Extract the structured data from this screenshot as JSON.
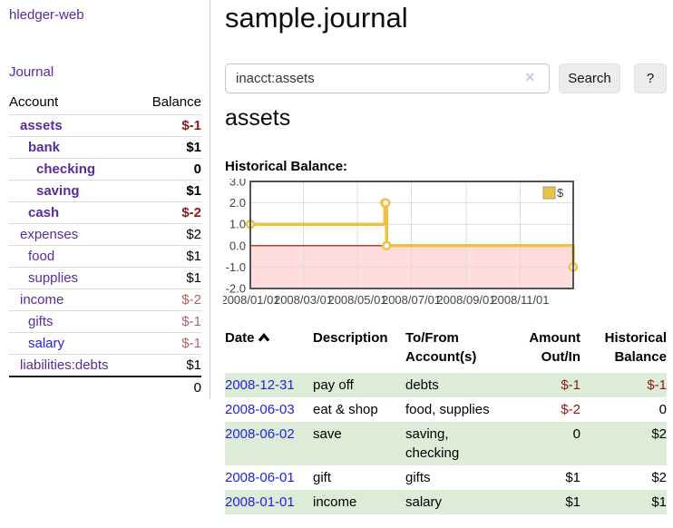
{
  "colors": {
    "link_purple": "#5a2b9a",
    "link_blue": "#2222dd",
    "negative_strong": "#8b1a1a",
    "negative_soft": "#b25f66",
    "row_alt_green": "#dcecd7",
    "button_bg": "#ececec",
    "series_gold": "#edc240"
  },
  "icons": {
    "clear": "×",
    "sort_asc": "chevron-up",
    "legend_swatch": "square"
  },
  "sidebar": {
    "app_title": "hledger-web",
    "journal_label": "Journal",
    "accounts_table": {
      "headers": {
        "account": "Account",
        "balance": "Balance"
      },
      "rows": [
        {
          "name": "assets",
          "level": 1,
          "bold": true,
          "color": "purple",
          "balance": "$-1",
          "tone": "neg-strong"
        },
        {
          "name": "bank",
          "level": 2,
          "bold": true,
          "color": "purple",
          "balance": "$1",
          "tone": ""
        },
        {
          "name": "checking",
          "level": 3,
          "bold": true,
          "color": "purple",
          "balance": "0",
          "tone": ""
        },
        {
          "name": "saving",
          "level": 3,
          "bold": true,
          "color": "purple",
          "balance": "$1",
          "tone": ""
        },
        {
          "name": "cash",
          "level": 2,
          "bold": true,
          "color": "purple",
          "balance": "$-2",
          "tone": "neg-strong"
        },
        {
          "name": "expenses",
          "level": 1,
          "bold": false,
          "color": "purple",
          "balance": "$2",
          "tone": ""
        },
        {
          "name": "food",
          "level": 2,
          "bold": false,
          "color": "purple",
          "balance": "$1",
          "tone": ""
        },
        {
          "name": "supplies",
          "level": 2,
          "bold": false,
          "color": "purple",
          "balance": "$1",
          "tone": ""
        },
        {
          "name": "income",
          "level": 1,
          "bold": false,
          "color": "purple",
          "balance": "$-2",
          "tone": "neg-soft"
        },
        {
          "name": "gifts",
          "level": 2,
          "bold": false,
          "color": "purple",
          "balance": "$-1",
          "tone": "neg-soft"
        },
        {
          "name": "salary",
          "level": 2,
          "bold": false,
          "color": "blue",
          "balance": "$-1",
          "tone": "neg-soft"
        },
        {
          "name": "liabilities:debts",
          "level": 1,
          "bold": false,
          "color": "purple",
          "balance": "$1",
          "tone": ""
        }
      ],
      "total": "0"
    }
  },
  "main": {
    "title": "sample.journal",
    "search": {
      "value": "inacct:assets",
      "clear_icon": "×",
      "button_label": "Search",
      "help_label": "?"
    },
    "section_heading": "assets",
    "register_table": {
      "sort": {
        "column": "date",
        "direction": "ascending"
      },
      "headers": {
        "date": "Date",
        "description": "Description",
        "accounts": "To/From Account(s)",
        "amount": "Amount Out/In",
        "balance": "Historical Balance"
      },
      "rows": [
        {
          "date": "2008-12-31",
          "description": "pay off",
          "accounts": "debts",
          "amount": "$-1",
          "balance": "$-1"
        },
        {
          "date": "2008-06-03",
          "description": "eat & shop",
          "accounts": "food, supplies",
          "amount": "$-2",
          "balance": "0"
        },
        {
          "date": "2008-06-02",
          "description": "save",
          "accounts": "saving, checking",
          "amount": "0",
          "balance": "$2"
        },
        {
          "date": "2008-06-01",
          "description": "gift",
          "accounts": "gifts",
          "amount": "$1",
          "balance": "$2"
        },
        {
          "date": "2008-01-01",
          "description": "income",
          "accounts": "salary",
          "amount": "$1",
          "balance": "$1"
        }
      ]
    }
  },
  "chart_data": {
    "type": "line",
    "step": true,
    "title": "Historical Balance:",
    "series": [
      {
        "name": "$",
        "color": "#edc240",
        "points": [
          [
            "2008-01-01",
            1
          ],
          [
            "2008-06-01",
            2
          ],
          [
            "2008-06-02",
            2
          ],
          [
            "2008-06-03",
            0
          ],
          [
            "2008-12-31",
            -1
          ]
        ]
      }
    ],
    "x_range": [
      "2008-01-01",
      "2008-12-31"
    ],
    "x_ticks": [
      "2008/01/01",
      "2008/03/01",
      "2008/05/01",
      "2008/07/01",
      "2008/09/01",
      "2008/11/01"
    ],
    "y_ticks": [
      3.0,
      2.0,
      1.0,
      0.0,
      -1.0,
      -2.0
    ],
    "ylim": [
      -2,
      3
    ],
    "grid": true,
    "legend_position": "top-right",
    "negative_region_color": "#ffdddd",
    "zero_line_color": "#a40000",
    "grid_color": "#dcdcdc",
    "border_color": "#545454"
  }
}
